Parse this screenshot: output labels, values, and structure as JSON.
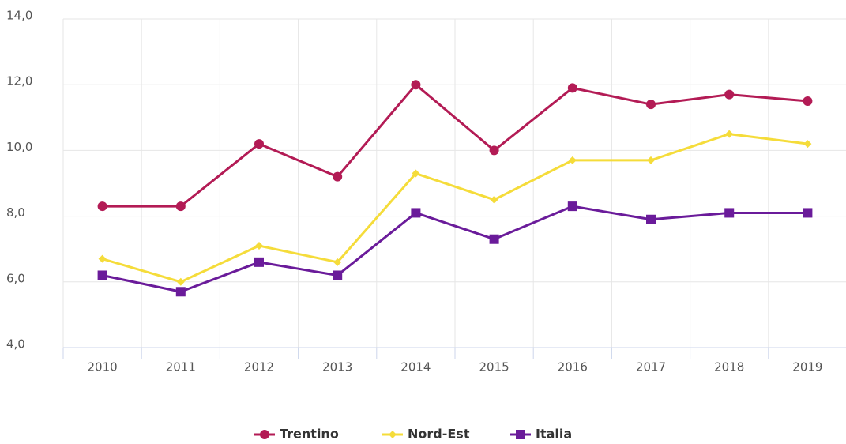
{
  "chart_data": {
    "type": "line",
    "categories": [
      "2010",
      "2011",
      "2012",
      "2013",
      "2014",
      "2015",
      "2016",
      "2017",
      "2018",
      "2019"
    ],
    "series": [
      {
        "name": "Trentino",
        "color": "#b31b55",
        "marker": "circle",
        "values": [
          8.3,
          8.3,
          10.2,
          9.2,
          12.0,
          10.0,
          11.9,
          11.4,
          11.7,
          11.5
        ]
      },
      {
        "name": "Nord-Est",
        "color": "#f5dc3a",
        "marker": "diamond",
        "values": [
          6.7,
          6.0,
          7.1,
          6.6,
          9.3,
          8.5,
          9.7,
          9.7,
          10.5,
          10.2
        ]
      },
      {
        "name": "Italia",
        "color": "#6a1b9a",
        "marker": "square",
        "values": [
          6.2,
          5.7,
          6.6,
          6.2,
          8.1,
          7.3,
          8.3,
          7.9,
          8.1,
          8.1
        ]
      }
    ],
    "ylim": [
      4,
      14
    ],
    "yticks": [
      {
        "value": 4,
        "label": "4,0"
      },
      {
        "value": 6,
        "label": "6,0"
      },
      {
        "value": 8,
        "label": "8,0"
      },
      {
        "value": 10,
        "label": "10,0"
      },
      {
        "value": 12,
        "label": "12,0"
      },
      {
        "value": 14,
        "label": "14,0"
      }
    ],
    "grid": true,
    "legend": "bottom"
  }
}
